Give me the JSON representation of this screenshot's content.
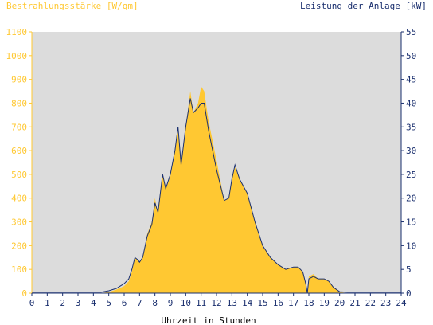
{
  "chart_data": {
    "type": "area",
    "left_axis_title": "Bestrahlungsstärke [W/qm]",
    "right_axis_title": "Leistung der Anlage [kW]",
    "xlabel": "Uhrzeit in Stunden",
    "x_range": [
      0,
      24
    ],
    "left_range": [
      0,
      1100
    ],
    "right_range": [
      0,
      55
    ],
    "x_ticks": [
      "0",
      "1",
      "2",
      "3",
      "4",
      "5",
      "6",
      "7",
      "8",
      "9",
      "10",
      "11",
      "12",
      "13",
      "14",
      "15",
      "16",
      "17",
      "18",
      "19",
      "20",
      "21",
      "22",
      "23",
      "24"
    ],
    "left_ticks": [
      "0",
      "100",
      "200",
      "300",
      "400",
      "500",
      "600",
      "700",
      "800",
      "900",
      "1000",
      "1100"
    ],
    "right_ticks": [
      "0",
      "5",
      "10",
      "15",
      "20",
      "25",
      "30",
      "35",
      "40",
      "45",
      "50",
      "55"
    ],
    "grid": false,
    "colors": {
      "irradiance_fill": "#ffc832",
      "power_line": "#1a2f6e",
      "plot_background": "#dcdcdc",
      "left_axis_text": "#ffc832",
      "right_axis_text": "#1a2f6e"
    },
    "series": [
      {
        "axis": "left",
        "style": "filled-area",
        "points": [
          [
            0,
            0
          ],
          [
            4.5,
            0
          ],
          [
            5,
            5
          ],
          [
            5.5,
            15
          ],
          [
            6,
            30
          ],
          [
            6.3,
            50
          ],
          [
            6.5,
            90
          ],
          [
            6.7,
            150
          ],
          [
            6.9,
            140
          ],
          [
            7,
            130
          ],
          [
            7.2,
            150
          ],
          [
            7.5,
            250
          ],
          [
            7.8,
            300
          ],
          [
            8,
            400
          ],
          [
            8.2,
            330
          ],
          [
            8.5,
            500
          ],
          [
            8.7,
            440
          ],
          [
            9,
            490
          ],
          [
            9.3,
            600
          ],
          [
            9.5,
            680
          ],
          [
            9.7,
            540
          ],
          [
            10,
            700
          ],
          [
            10.3,
            850
          ],
          [
            10.5,
            760
          ],
          [
            10.8,
            800
          ],
          [
            11,
            870
          ],
          [
            11.2,
            850
          ],
          [
            11.5,
            720
          ],
          [
            12,
            560
          ],
          [
            12.5,
            390
          ],
          [
            12.8,
            400
          ],
          [
            13,
            480
          ],
          [
            13.2,
            530
          ],
          [
            13.5,
            480
          ],
          [
            14,
            420
          ],
          [
            14.5,
            300
          ],
          [
            15,
            200
          ],
          [
            15.5,
            150
          ],
          [
            16,
            120
          ],
          [
            16.5,
            100
          ],
          [
            17,
            110
          ],
          [
            17.3,
            110
          ],
          [
            17.6,
            90
          ],
          [
            17.8,
            40
          ],
          [
            17.9,
            0
          ],
          [
            18,
            70
          ],
          [
            18.3,
            80
          ],
          [
            18.6,
            60
          ],
          [
            19,
            60
          ],
          [
            19.3,
            50
          ],
          [
            19.6,
            25
          ],
          [
            20,
            5
          ],
          [
            20.5,
            0
          ],
          [
            24,
            0
          ]
        ]
      },
      {
        "axis": "right",
        "style": "line",
        "points": [
          [
            0,
            0.2
          ],
          [
            4.5,
            0.2
          ],
          [
            5,
            0.5
          ],
          [
            5.5,
            1
          ],
          [
            6,
            2
          ],
          [
            6.3,
            3
          ],
          [
            6.5,
            5
          ],
          [
            6.7,
            7.5
          ],
          [
            6.9,
            7
          ],
          [
            7,
            6.5
          ],
          [
            7.2,
            7.5
          ],
          [
            7.5,
            12
          ],
          [
            7.8,
            14.5
          ],
          [
            8,
            19
          ],
          [
            8.2,
            17
          ],
          [
            8.5,
            25
          ],
          [
            8.7,
            22
          ],
          [
            9,
            25
          ],
          [
            9.3,
            30
          ],
          [
            9.5,
            35
          ],
          [
            9.7,
            27
          ],
          [
            10,
            35
          ],
          [
            10.3,
            41
          ],
          [
            10.5,
            38
          ],
          [
            10.8,
            39
          ],
          [
            11,
            40
          ],
          [
            11.2,
            40
          ],
          [
            11.5,
            34
          ],
          [
            12,
            26
          ],
          [
            12.5,
            19.5
          ],
          [
            12.8,
            20
          ],
          [
            13,
            24
          ],
          [
            13.2,
            27
          ],
          [
            13.5,
            24
          ],
          [
            14,
            21
          ],
          [
            14.5,
            15
          ],
          [
            15,
            10
          ],
          [
            15.5,
            7.5
          ],
          [
            16,
            6
          ],
          [
            16.5,
            5
          ],
          [
            17,
            5.5
          ],
          [
            17.3,
            5.5
          ],
          [
            17.6,
            4.5
          ],
          [
            17.8,
            2
          ],
          [
            17.9,
            0
          ],
          [
            18,
            3
          ],
          [
            18.3,
            3.5
          ],
          [
            18.6,
            3
          ],
          [
            19,
            3
          ],
          [
            19.3,
            2.5
          ],
          [
            19.6,
            1.2
          ],
          [
            20,
            0.3
          ],
          [
            20.5,
            0.2
          ],
          [
            24,
            0.2
          ]
        ]
      }
    ]
  }
}
